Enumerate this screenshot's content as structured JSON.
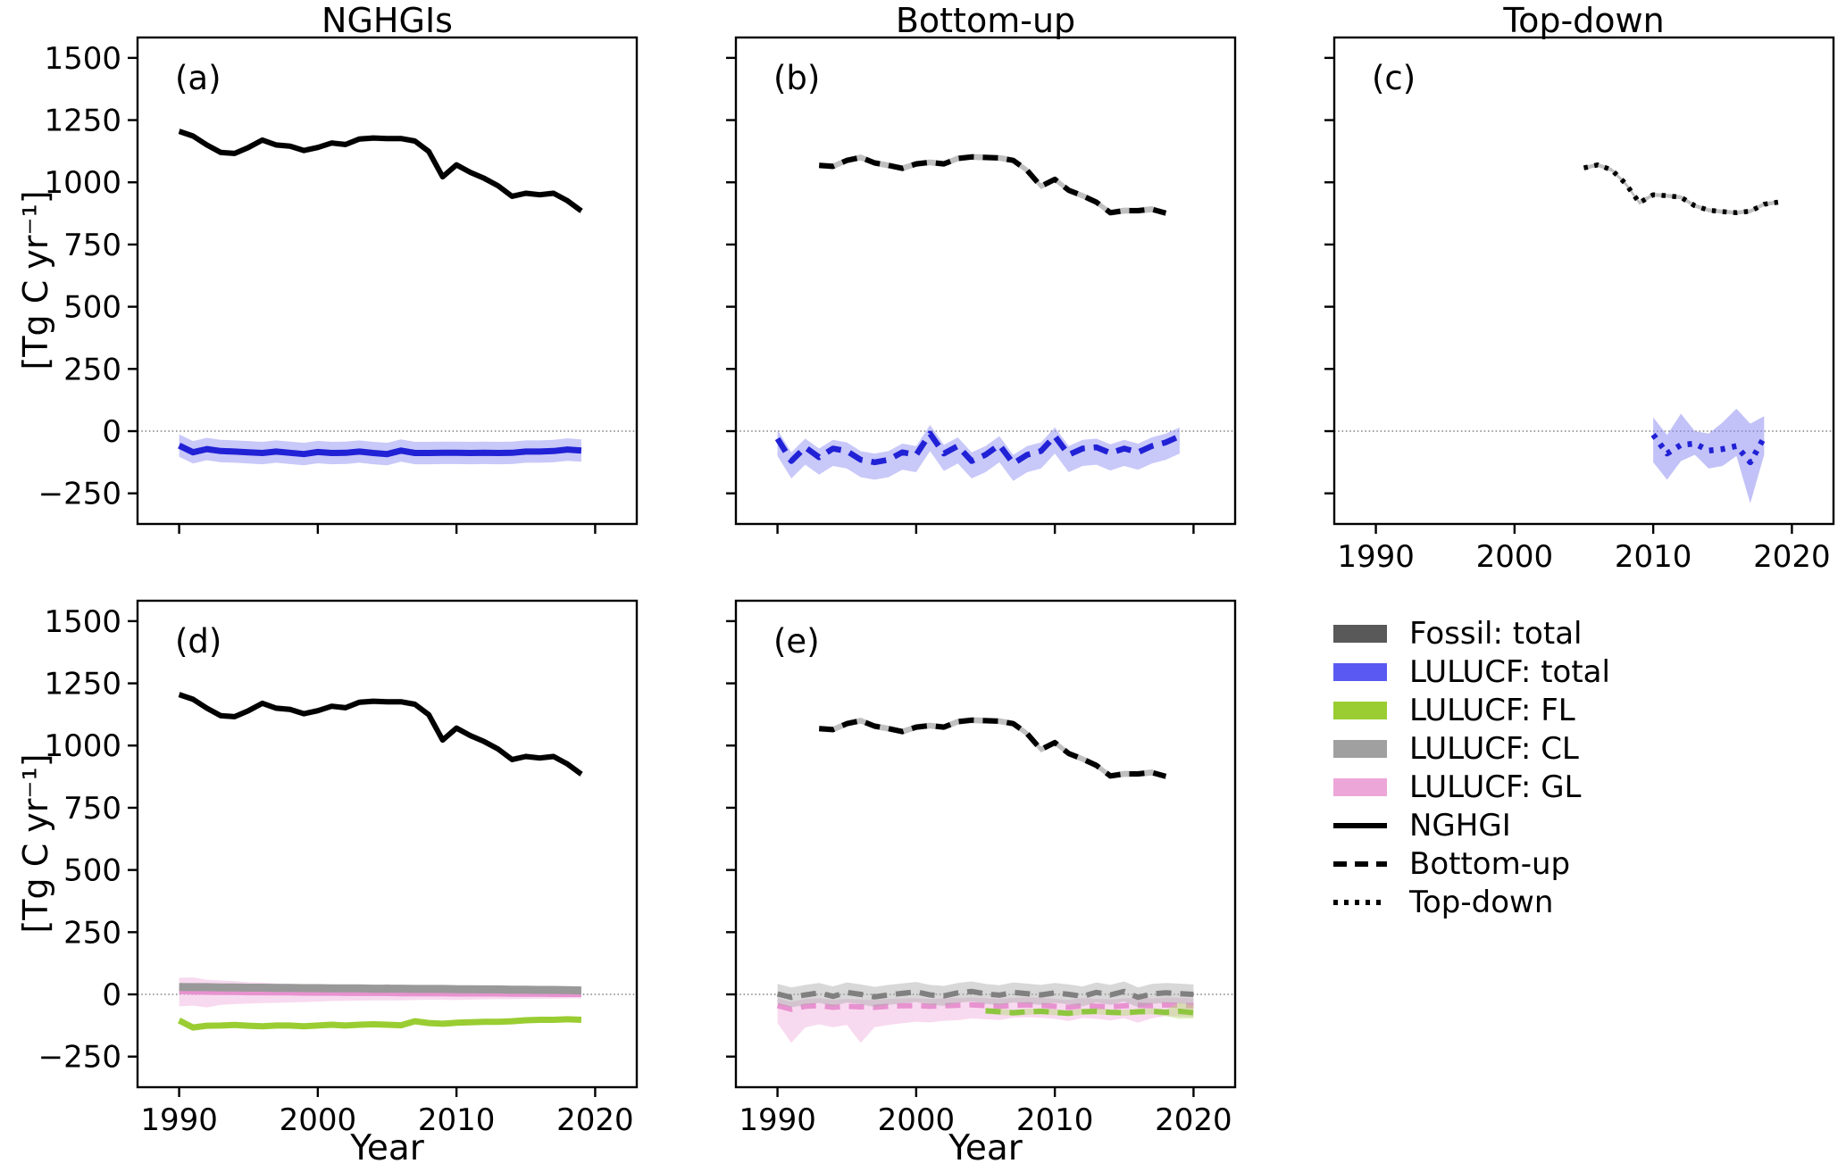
{
  "titles": [
    "NGHGIs",
    "Bottom-up",
    "Top-down"
  ],
  "ylabel": "[Tg C yr⁻¹]",
  "xlabel": "Year",
  "colors": {
    "black": "#000000",
    "fossil_band": "#b0b0b0",
    "blue_line": "#2121d6",
    "blue_band": "#8585f2",
    "green_line": "#9acd32",
    "green_band": "#b5dc6e",
    "gray_line": "#999999",
    "gray_band": "#a8a8a8",
    "pink_line": "#e892d0",
    "pink_band": "#f2b6e2",
    "zero_line": "#666666",
    "legend_fossil_patch": "#595959",
    "legend_blue_patch": "#5a5af2",
    "legend_green_patch": "#9acd32",
    "legend_gray_patch": "#a0a0a0",
    "legend_pink_patch": "#eda6d8"
  },
  "legend": {
    "items": [
      {
        "label": "Fossil: total",
        "type": "patch",
        "color": "#595959"
      },
      {
        "label": "LULUCF: total",
        "type": "patch",
        "color": "#5a5af2"
      },
      {
        "label": "LULUCF: FL",
        "type": "patch",
        "color": "#9acd32"
      },
      {
        "label": "LULUCF: CL",
        "type": "patch",
        "color": "#a0a0a0"
      },
      {
        "label": "LULUCF: GL",
        "type": "patch",
        "color": "#eda6d8"
      },
      {
        "label": "NGHGI",
        "type": "solid",
        "color": "#000000"
      },
      {
        "label": "Bottom-up",
        "type": "dashed",
        "color": "#000000"
      },
      {
        "label": "Top-down",
        "type": "dotted",
        "color": "#000000"
      }
    ]
  },
  "chart_data": {
    "type": "line",
    "xlabel": "Year",
    "ylabel": "[Tg C yr⁻¹]",
    "xlim": [
      1987,
      2023
    ],
    "ylim": [
      -373,
      1582
    ],
    "xticks": [
      1990,
      2000,
      2010,
      2020
    ],
    "yticks": [
      1500,
      1250,
      1000,
      750,
      500,
      250,
      0,
      -250
    ],
    "zero_gridline": true,
    "legend_position": "bottom-right-cell",
    "series": {
      "fossil_nghgi": {
        "name": "Fossil total (NGHGI)",
        "style": "solid",
        "color": "#000000",
        "width": 6,
        "start_year": 1990,
        "values": [
          1205,
          1186,
          1150,
          1120,
          1116,
          1140,
          1170,
          1150,
          1145,
          1128,
          1140,
          1158,
          1152,
          1174,
          1178,
          1176,
          1176,
          1166,
          1124,
          1022,
          1070,
          1040,
          1016,
          986,
          944,
          956,
          950,
          956,
          926,
          885
        ],
        "band": {
          "up": 12,
          "down": 12,
          "color": "#b0b0b0",
          "op": 0.65
        }
      },
      "lulucf_total_nghgi": {
        "name": "LULUCF total (NGHGI)",
        "style": "solid",
        "color": "#2121d6",
        "width": 7,
        "start_year": 1990,
        "values": [
          -58,
          -85,
          -72,
          -80,
          -82,
          -85,
          -88,
          -82,
          -87,
          -92,
          -84,
          -88,
          -87,
          -82,
          -88,
          -92,
          -78,
          -88,
          -88,
          -87,
          -87,
          -88,
          -87,
          -88,
          -87,
          -82,
          -82,
          -80,
          -74,
          -78
        ],
        "band": {
          "up": 45,
          "down": 45,
          "color": "#8585f2",
          "op": 0.45
        }
      },
      "fossil_bottomup": {
        "name": "Fossil total (Bottom-up)",
        "style": "dashed",
        "color": "#000000",
        "width": 6,
        "start_year": 1993,
        "values": [
          1068,
          1064,
          1088,
          1100,
          1078,
          1068,
          1056,
          1074,
          1080,
          1074,
          1096,
          1102,
          1100,
          1098,
          1088,
          1048,
          984,
          1012,
          968,
          946,
          920,
          878,
          886,
          886,
          892,
          876
        ],
        "band": {
          "up": 12,
          "down": 12,
          "color": "#b0b0b0",
          "op": 0.8
        }
      },
      "lulucf_total_bottomup": {
        "name": "LULUCF total (Bottom-up)",
        "style": "dashed",
        "color": "#2121d6",
        "width": 6.5,
        "start_year": 1990,
        "values": [
          -30,
          -120,
          -65,
          -105,
          -70,
          -80,
          -115,
          -125,
          -115,
          -85,
          -95,
          -10,
          -90,
          -60,
          -120,
          -95,
          -55,
          -130,
          -95,
          -80,
          -20,
          -95,
          -70,
          -65,
          -88,
          -70,
          -85,
          -60,
          -45,
          -20
        ],
        "band": {
          "up": 35,
          "down": 70,
          "color": "#8585f2",
          "op": 0.45
        }
      },
      "fossil_topdown": {
        "name": "Fossil total (Top-down)",
        "style": "dotted",
        "color": "#000000",
        "width": 5.5,
        "start_year": 2005,
        "values": [
          1058,
          1070,
          1050,
          995,
          918,
          950,
          946,
          940,
          906,
          888,
          882,
          878,
          884,
          912,
          920
        ],
        "band": {
          "up": 8,
          "down": 8,
          "color": "#b0b0b0",
          "op": 0.8
        }
      },
      "lulucf_total_topdown": {
        "name": "LULUCF total (Top-down)",
        "style": "dotted",
        "color": "#2121d6",
        "width": 6.5,
        "dash": "5 8",
        "start_year": 2010,
        "values": [
          -14,
          -90,
          -55,
          -50,
          -78,
          -72,
          -60,
          -125,
          -25
        ],
        "band": {
          "upper": [
            55,
            -15,
            70,
            0,
            -10,
            35,
            90,
            30,
            60
          ],
          "lower": [
            -125,
            -195,
            -120,
            -95,
            -150,
            -140,
            -100,
            -290,
            -95
          ],
          "color": "#8585f2",
          "op": 0.5
        }
      },
      "lulucf_cl_nghgi": {
        "name": "LULUCF CL (NGHGI)",
        "style": "solid",
        "color": "#999999",
        "width": 9,
        "start_year": 1990,
        "values": [
          30,
          29,
          29,
          28,
          28,
          27,
          27,
          26,
          26,
          25,
          25,
          24,
          24,
          24,
          23,
          23,
          23,
          22,
          22,
          22,
          21,
          21,
          20,
          20,
          19,
          19,
          18,
          18,
          17,
          16
        ],
        "band": {
          "up": 8,
          "down": 8,
          "color": "#a8a8a8",
          "op": 0.4
        }
      },
      "lulucf_gl_nghgi": {
        "name": "LULUCF GL (NGHGI)",
        "style": "solid",
        "color": "#e892d0",
        "width": 6,
        "start_year": 1990,
        "values": [
          12,
          10,
          9,
          8,
          8,
          7,
          7,
          6,
          6,
          5,
          5,
          5,
          4,
          4,
          4,
          4,
          3,
          3,
          3,
          3,
          2,
          2,
          2,
          2,
          1,
          1,
          1,
          0,
          0,
          0
        ],
        "band": {
          "up": [
            55,
            58,
            50,
            48,
            45,
            42,
            40,
            38,
            36,
            34,
            32,
            30,
            29,
            28,
            27,
            38,
            26,
            25,
            24,
            24,
            34,
            22,
            21,
            20,
            19,
            18,
            17,
            16,
            15,
            15
          ],
          "down": [
            60,
            55,
            62,
            50,
            47,
            44,
            42,
            40,
            38,
            36,
            34,
            32,
            30,
            29,
            28,
            28,
            27,
            26,
            25,
            25,
            25,
            23,
            22,
            21,
            20,
            19,
            18,
            17,
            16,
            16
          ],
          "color": "#f2b6e2",
          "op": 0.5
        }
      },
      "lulucf_fl_nghgi": {
        "name": "LULUCF FL (NGHGI)",
        "style": "solid",
        "color": "#9acd32",
        "width": 7,
        "start_year": 1990,
        "values": [
          -105,
          -133,
          -126,
          -125,
          -123,
          -126,
          -128,
          -125,
          -125,
          -128,
          -125,
          -122,
          -125,
          -122,
          -120,
          -122,
          -124,
          -108,
          -115,
          -118,
          -114,
          -112,
          -110,
          -110,
          -108,
          -104,
          -102,
          -102,
          -100,
          -102
        ],
        "band": {
          "up": 10,
          "down": 10,
          "color": "#b5dc6e",
          "op": 0.5
        }
      },
      "lulucf_cl_bottomup": {
        "name": "LULUCF CL (Bottom-up)",
        "style": "dashed",
        "color": "#808080",
        "width": 6,
        "start_year": 1990,
        "values": [
          2,
          -12,
          -2,
          6,
          -8,
          8,
          0,
          -10,
          -2,
          4,
          10,
          -2,
          -6,
          6,
          12,
          2,
          -3,
          8,
          3,
          -2,
          6,
          0,
          -8,
          8,
          -2,
          12,
          -12,
          2,
          6,
          3,
          0
        ],
        "band": {
          "up": 40,
          "down": 40,
          "color": "#a8a8a8",
          "op": 0.45
        }
      },
      "lulucf_gl_bottomup": {
        "name": "LULUCF GL (Bottom-up)",
        "style": "dashed",
        "color": "#e892d0",
        "width": 6,
        "start_year": 1990,
        "values": [
          -45,
          -60,
          -48,
          -45,
          -52,
          -48,
          -50,
          -52,
          -48,
          -46,
          -45,
          -48,
          -46,
          -44,
          -42,
          -45,
          -48,
          -44,
          -42,
          -44,
          -48,
          -52,
          -45,
          -48,
          -50,
          -46,
          -44,
          -46,
          -42,
          -44,
          -46
        ],
        "band": {
          "up": 30,
          "down": [
            70,
            135,
            85,
            75,
            80,
            75,
            145,
            80,
            75,
            70,
            65,
            65,
            60,
            60,
            55,
            55,
            55,
            50,
            50,
            50,
            50,
            55,
            50,
            50,
            55,
            50,
            70,
            50,
            45,
            45,
            45
          ],
          "color": "#f2b6e2",
          "op": 0.5
        }
      },
      "lulucf_fl_bottomup": {
        "name": "LULUCF FL (Bottom-up)",
        "style": "dashed",
        "color": "#8ec63f",
        "width": 6,
        "start_year": 2005,
        "values": [
          -66,
          -70,
          -74,
          -70,
          -68,
          -72,
          -76,
          -70,
          -68,
          -72,
          -74,
          -70,
          -68,
          -72,
          -68,
          -74
        ],
        "band": {
          "up": [
            12,
            12,
            12,
            12,
            12,
            12,
            12,
            12,
            12,
            12,
            12,
            12,
            12,
            12,
            35,
            30
          ],
          "down": [
            12,
            12,
            12,
            12,
            12,
            12,
            12,
            12,
            12,
            12,
            12,
            12,
            12,
            15,
            30,
            22
          ],
          "color": "#b5dc6e",
          "op": 0.45
        }
      }
    },
    "panels": [
      {
        "id": "a",
        "letter": "(a)",
        "title": "NGHGIs",
        "row": 0,
        "col": 0,
        "show_x_ticklabels": false,
        "show_y_ticklabels": true,
        "series": [
          "lulucf_total_nghgi",
          "fossil_nghgi"
        ]
      },
      {
        "id": "b",
        "letter": "(b)",
        "title": "Bottom-up",
        "row": 0,
        "col": 1,
        "show_x_ticklabels": false,
        "show_y_ticklabels": false,
        "series": [
          "lulucf_total_bottomup",
          "fossil_bottomup"
        ]
      },
      {
        "id": "c",
        "letter": "(c)",
        "title": "Top-down",
        "row": 0,
        "col": 2,
        "show_x_ticklabels": true,
        "show_y_ticklabels": false,
        "series": [
          "lulucf_total_topdown",
          "fossil_topdown"
        ]
      },
      {
        "id": "d",
        "letter": "(d)",
        "title": "NGHGIs",
        "row": 1,
        "col": 0,
        "show_x_ticklabels": true,
        "show_y_ticklabels": true,
        "series": [
          "lulucf_gl_nghgi",
          "lulucf_cl_nghgi",
          "lulucf_fl_nghgi",
          "fossil_nghgi"
        ]
      },
      {
        "id": "e",
        "letter": "(e)",
        "title": "Bottom-up",
        "row": 1,
        "col": 1,
        "show_x_ticklabels": true,
        "show_y_ticklabels": false,
        "series": [
          "lulucf_gl_bottomup",
          "lulucf_cl_bottomup",
          "lulucf_fl_bottomup",
          "fossil_bottomup"
        ]
      }
    ]
  }
}
